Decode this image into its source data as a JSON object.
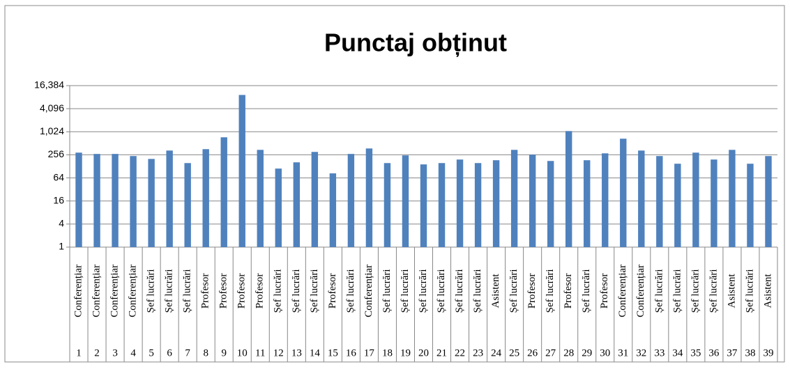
{
  "chart_data": {
    "type": "bar",
    "title": "Punctaj obținut",
    "categories": [
      "Conferențiar",
      "Conferențiar",
      "Conferențiar",
      "Conferențiar",
      "Șef lucrări",
      "Șef lucrări",
      "Șef lucrări",
      "Profesor",
      "Profesor",
      "Profesor",
      "Profesor",
      "Șef lucrări",
      "Șef lucrări",
      "Șef lucrări",
      "Profesor",
      "Șef lucrări",
      "Conferențiar",
      "Șef lucrări",
      "Șef lucrări",
      "Șef lucrări",
      "Șef lucrări",
      "Șef lucrări",
      "Șef lucrări",
      "Asistent",
      "Șef lucrări",
      "Profesor",
      "Șef lucrări",
      "Profesor",
      "Șef lucrări",
      "Profesor",
      "Conferențiar",
      "Conferențiar",
      "Șef lucrări",
      "Șef lucrări",
      "Șef lucrări",
      "Șef lucrări",
      "Asistent",
      "Șef lucrări",
      "Asistent"
    ],
    "category_numbers": [
      "1",
      "2",
      "3",
      "4",
      "5",
      "6",
      "7",
      "8",
      "9",
      "10",
      "11",
      "12",
      "13",
      "14",
      "15",
      "16",
      "17",
      "18",
      "19",
      "20",
      "21",
      "22",
      "23",
      "24",
      "25",
      "26",
      "27",
      "28",
      "29",
      "30",
      "31",
      "32",
      "33",
      "34",
      "35",
      "36",
      "37",
      "38",
      "39"
    ],
    "values": [
      292,
      270,
      270,
      238,
      200,
      331,
      156,
      360,
      734,
      9350,
      345,
      112,
      163,
      305,
      84,
      270,
      375,
      156,
      247,
      144,
      156,
      193,
      156,
      185,
      345,
      258,
      177,
      1067,
      185,
      280,
      675,
      331,
      238,
      150,
      292,
      193,
      345,
      150,
      238
    ],
    "color": "#4f81bd",
    "yscale": "log",
    "ylim": [
      1,
      16384
    ],
    "yticks": [
      1,
      4,
      16,
      64,
      256,
      {
        "value": 1024,
        "label": "1,024"
      },
      {
        "value": 4096,
        "label": "4,096"
      },
      {
        "value": 16384,
        "label": "16,384"
      }
    ],
    "grid": true
  }
}
